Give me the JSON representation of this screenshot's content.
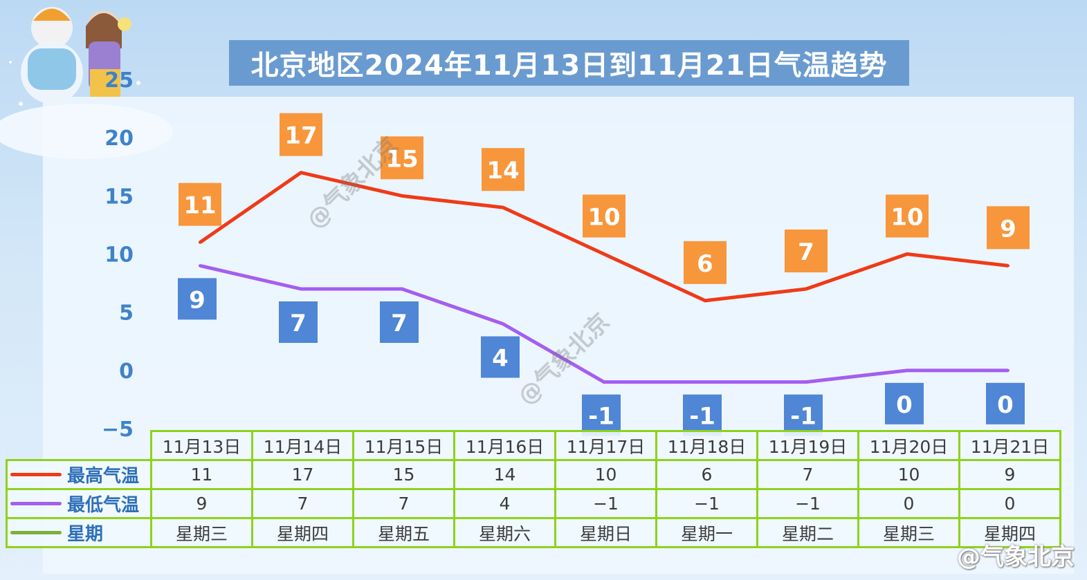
{
  "title": "北京地区2024年11月13日到11月21日气温趋势",
  "watermark": "@气象北京",
  "credit": "@气象北京",
  "colors": {
    "high": "#f03a17",
    "low": "#a45ef0",
    "week": "#7bb13b",
    "high_box": "#f7963b",
    "low_box": "#4f86d6"
  },
  "chart_data": {
    "type": "line",
    "categories": [
      "11月13日",
      "11月14日",
      "11月15日",
      "11月16日",
      "11月17日",
      "11月18日",
      "11月19日",
      "11月20日",
      "11月21日"
    ],
    "series": [
      {
        "name": "最高气温",
        "values": [
          11,
          17,
          15,
          14,
          10,
          6,
          7,
          10,
          9
        ]
      },
      {
        "name": "最低气温",
        "values": [
          9,
          7,
          7,
          4,
          -1,
          -1,
          -1,
          0,
          0
        ]
      }
    ],
    "weekdays": [
      "星期三",
      "星期四",
      "星期五",
      "星期六",
      "星期日",
      "星期一",
      "星期二",
      "星期三",
      "星期四"
    ],
    "yticks": [
      "25",
      "20",
      "15",
      "10",
      "5",
      "0",
      "−5"
    ],
    "ylim": [
      -5,
      25
    ],
    "grid": false,
    "legend": "table-left",
    "table_rows": {
      "high_label": "最高气温",
      "low_label": "最低气温",
      "week_label": "星期",
      "high_values": [
        "11",
        "17",
        "15",
        "14",
        "10",
        "6",
        "7",
        "10",
        "9"
      ],
      "low_values": [
        "9",
        "7",
        "7",
        "4",
        "−1",
        "−1",
        "−1",
        "0",
        "0"
      ]
    },
    "high_labels": [
      "11",
      "17",
      "15",
      "14",
      "10",
      "6",
      "7",
      "10",
      "9"
    ],
    "low_labels": [
      "9",
      "7",
      "7",
      "4",
      "-1",
      "-1",
      "-1",
      "0",
      "0"
    ]
  }
}
